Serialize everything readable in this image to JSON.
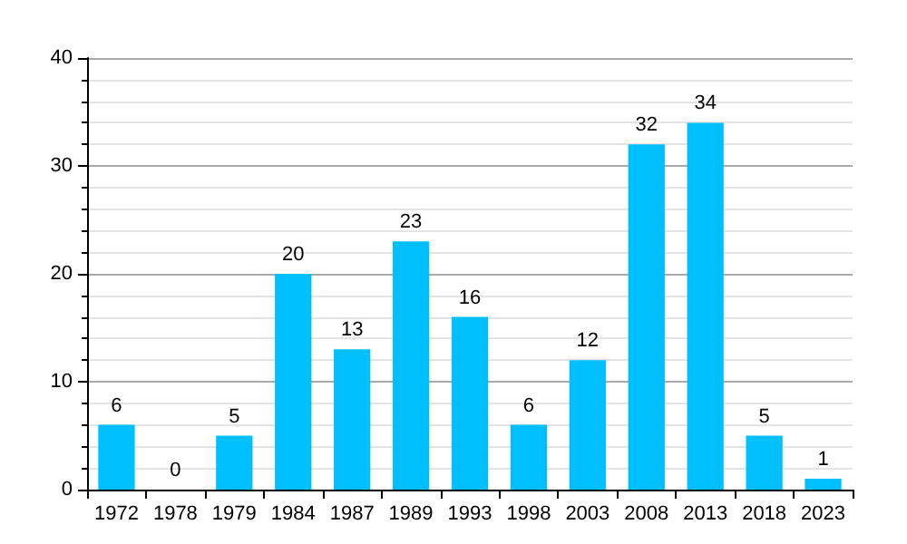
{
  "chart_data": {
    "type": "bar",
    "categories": [
      "1972",
      "1978",
      "1979",
      "1984",
      "1987",
      "1989",
      "1993",
      "1998",
      "2003",
      "2008",
      "2013",
      "2018",
      "2023"
    ],
    "values": [
      6,
      0,
      5,
      20,
      13,
      23,
      16,
      6,
      12,
      32,
      34,
      5,
      1
    ],
    "color": "#00bfff",
    "ylim": [
      0,
      40
    ],
    "yticks": [
      0,
      10,
      20,
      30,
      40
    ],
    "grid": "y",
    "data_labels": true
  }
}
